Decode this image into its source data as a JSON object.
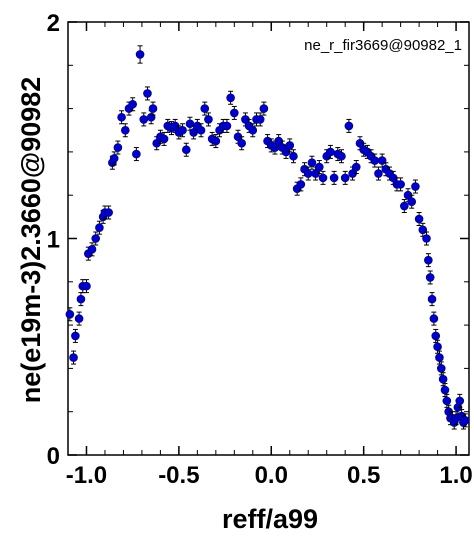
{
  "chart_data": {
    "type": "scatter",
    "title": "",
    "annotation": "ne_r_fir3669@90982_1",
    "xlabel": "reff/a99",
    "ylabel": "ne(e19m-3)2.3660@90982",
    "xlim": [
      -1.1,
      1.07
    ],
    "ylim": [
      0,
      2
    ],
    "x_ticks": [
      -1.0,
      -0.5,
      0.0,
      0.5,
      1.0
    ],
    "x_tick_labels": [
      "-1.0",
      "-0.5",
      "0.0",
      "0.5",
      "1.0"
    ],
    "y_ticks": [
      0,
      1,
      2
    ],
    "y_tick_labels": [
      "0",
      "1",
      "2"
    ],
    "grid": false,
    "marker_color": "#0000cc",
    "error_bar_color": "#000000",
    "series": [
      {
        "x": [
          -1.09,
          -1.07,
          -1.06,
          -1.04,
          -1.03,
          -1.02,
          -1.0,
          -0.99,
          -0.97,
          -0.95,
          -0.93,
          -0.91,
          -0.9,
          -0.88,
          -0.86,
          -0.85,
          -0.83,
          -0.81,
          -0.79,
          -0.77,
          -0.75,
          -0.73,
          -0.71,
          -0.69,
          -0.67,
          -0.65,
          -0.64,
          -0.62,
          -0.6,
          -0.58,
          -0.56,
          -0.54,
          -0.52,
          -0.5,
          -0.48,
          -0.46,
          -0.44,
          -0.42,
          -0.4,
          -0.38,
          -0.36,
          -0.34,
          -0.32,
          -0.3,
          -0.28,
          -0.26,
          -0.24,
          -0.22,
          -0.2,
          -0.18,
          -0.16,
          -0.14,
          -0.12,
          -0.1,
          -0.08,
          -0.06,
          -0.04,
          -0.02,
          0.0,
          0.02,
          0.04,
          0.06,
          0.08,
          0.1,
          0.12,
          0.14,
          0.16,
          0.18,
          0.2,
          0.22,
          0.24,
          0.26,
          0.28,
          0.3,
          0.32,
          0.34,
          0.36,
          0.38,
          0.4,
          0.42,
          0.44,
          0.46,
          0.48,
          0.5,
          0.52,
          0.54,
          0.56,
          0.58,
          0.6,
          0.62,
          0.64,
          0.66,
          0.68,
          0.7,
          0.72,
          0.74,
          0.76,
          0.78,
          0.8,
          0.82,
          0.84,
          0.85,
          0.86,
          0.87,
          0.88,
          0.89,
          0.9,
          0.91,
          0.92,
          0.93,
          0.94,
          0.95,
          0.96,
          0.97,
          0.98,
          0.99,
          1.0,
          1.01,
          1.02,
          1.03,
          1.04,
          1.05
        ],
        "y": [
          0.65,
          0.45,
          0.55,
          0.63,
          0.72,
          0.78,
          0.78,
          0.93,
          0.95,
          1.0,
          1.05,
          1.1,
          1.12,
          1.12,
          1.35,
          1.37,
          1.42,
          1.56,
          1.5,
          1.6,
          1.62,
          1.39,
          1.85,
          1.55,
          1.67,
          1.56,
          1.6,
          1.44,
          1.47,
          1.46,
          1.52,
          1.51,
          1.52,
          1.49,
          1.5,
          1.41,
          1.53,
          1.49,
          1.52,
          1.5,
          1.6,
          1.55,
          1.46,
          1.45,
          1.5,
          1.52,
          1.52,
          1.65,
          1.58,
          1.47,
          1.44,
          1.55,
          1.52,
          1.5,
          1.55,
          1.55,
          1.6,
          1.45,
          1.43,
          1.42,
          1.45,
          1.42,
          1.4,
          1.43,
          1.38,
          1.23,
          1.25,
          1.32,
          1.3,
          1.35,
          1.3,
          1.33,
          1.28,
          1.38,
          1.4,
          1.28,
          1.39,
          1.38,
          1.28,
          1.52,
          1.3,
          1.33,
          1.44,
          1.41,
          1.4,
          1.38,
          1.36,
          1.3,
          1.36,
          1.32,
          1.3,
          1.28,
          1.25,
          1.25,
          1.15,
          1.2,
          1.17,
          1.24,
          1.09,
          1.04,
          1.0,
          0.9,
          0.82,
          0.72,
          0.63,
          0.55,
          0.5,
          0.45,
          0.4,
          0.35,
          0.3,
          0.25,
          0.2,
          0.17,
          0.17,
          0.15,
          0.17,
          0.22,
          0.25,
          0.18,
          0.15,
          0.16
        ],
        "error": [
          0.03,
          0.03,
          0.03,
          0.03,
          0.03,
          0.03,
          0.03,
          0.03,
          0.03,
          0.03,
          0.03,
          0.03,
          0.03,
          0.03,
          0.03,
          0.03,
          0.03,
          0.03,
          0.03,
          0.03,
          0.03,
          0.03,
          0.04,
          0.03,
          0.03,
          0.03,
          0.03,
          0.03,
          0.03,
          0.03,
          0.03,
          0.03,
          0.03,
          0.03,
          0.03,
          0.03,
          0.03,
          0.03,
          0.03,
          0.03,
          0.03,
          0.03,
          0.03,
          0.03,
          0.03,
          0.03,
          0.03,
          0.03,
          0.03,
          0.03,
          0.03,
          0.03,
          0.03,
          0.03,
          0.03,
          0.03,
          0.03,
          0.03,
          0.03,
          0.03,
          0.03,
          0.03,
          0.03,
          0.03,
          0.03,
          0.03,
          0.03,
          0.03,
          0.03,
          0.03,
          0.03,
          0.03,
          0.03,
          0.03,
          0.03,
          0.03,
          0.03,
          0.03,
          0.03,
          0.03,
          0.03,
          0.03,
          0.03,
          0.03,
          0.03,
          0.03,
          0.03,
          0.03,
          0.03,
          0.03,
          0.03,
          0.03,
          0.03,
          0.03,
          0.03,
          0.03,
          0.03,
          0.03,
          0.03,
          0.03,
          0.03,
          0.03,
          0.03,
          0.03,
          0.03,
          0.03,
          0.03,
          0.03,
          0.03,
          0.03,
          0.03,
          0.03,
          0.03,
          0.03,
          0.03,
          0.03,
          0.03,
          0.03,
          0.03,
          0.03,
          0.03,
          0.03
        ]
      }
    ]
  }
}
